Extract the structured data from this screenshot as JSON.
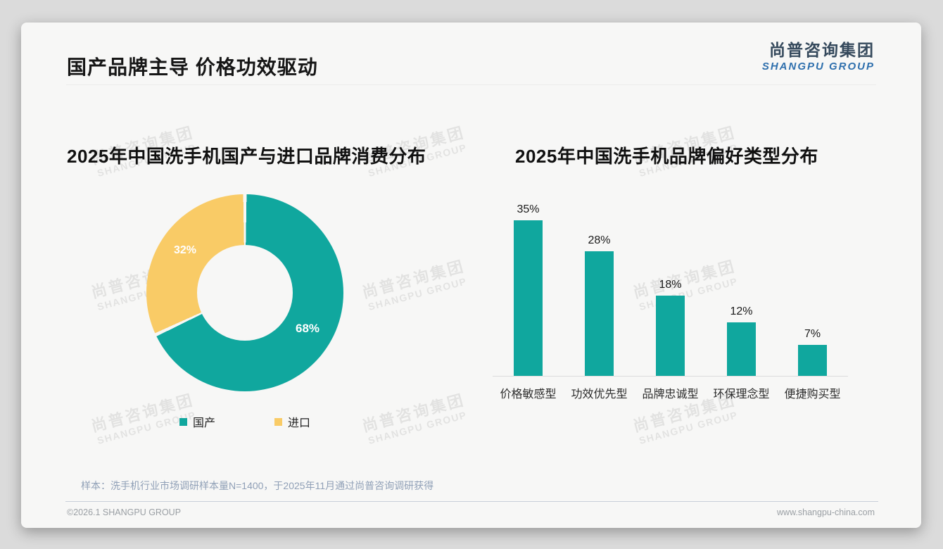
{
  "slide": {
    "title": "国产品牌主导 价格功效驱动",
    "logo": {
      "cn": "尚普咨询集团",
      "en": "SHANGPU GROUP"
    },
    "watermark": {
      "cn": "尚普咨询集团",
      "en": "SHANGPU GROUP"
    },
    "footnote": "样本：洗手机行业市场调研样本量N=1400，于2025年11月通过尚普咨询调研获得",
    "footer": {
      "left": "©2026.1 SHANGPU GROUP",
      "right": "www.shangpu-china.com"
    }
  },
  "colors": {
    "teal": "#10a79e",
    "yellow": "#f9cb66",
    "card_bg": "#f7f7f6",
    "logo_cn": "#35495c",
    "logo_en": "#2e6fad"
  },
  "chart_data": [
    {
      "type": "pie",
      "donut": true,
      "title": "2025年中国洗手机国产与进口品牌消费分布",
      "labels": [
        "国产",
        "进口"
      ],
      "values": [
        68,
        32
      ],
      "slice_labels": [
        "68%",
        "32%"
      ],
      "colors": [
        "#10a79e",
        "#f9cb66"
      ],
      "start_angle": "top",
      "direction": "clockwise",
      "legend_position": "bottom"
    },
    {
      "type": "bar",
      "title": "2025年中国洗手机品牌偏好类型分布",
      "categories": [
        "价格敏感型",
        "功效优先型",
        "品牌忠诚型",
        "环保理念型",
        "便捷购买型"
      ],
      "values": [
        35,
        28,
        18,
        12,
        7
      ],
      "value_labels": [
        "35%",
        "28%",
        "18%",
        "12%",
        "7%"
      ],
      "bar_color": "#10a79e",
      "ylim": [
        0,
        40
      ],
      "grid": false,
      "baseline": true,
      "legend_position": "none"
    }
  ]
}
